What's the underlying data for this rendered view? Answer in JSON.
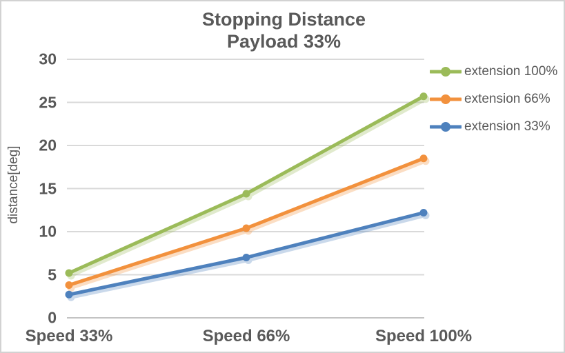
{
  "chart_data": {
    "type": "line",
    "title": "Stopping Distance",
    "subtitle": "Payload 33%",
    "categories": [
      "Speed 33%",
      "Speed 66%",
      "Speed 100%"
    ],
    "series": [
      {
        "name": "extension 100%",
        "color": "#9BBB59",
        "values": [
          5.2,
          14.4,
          25.7
        ]
      },
      {
        "name": "extension 66%",
        "color": "#F2913D",
        "values": [
          3.8,
          10.4,
          18.5
        ]
      },
      {
        "name": "extension 33%",
        "color": "#4E81BD",
        "values": [
          2.7,
          7.0,
          12.2
        ]
      }
    ],
    "xlabel": "",
    "ylabel": "distance[deg]",
    "ylim": [
      0,
      30
    ],
    "ytick_step": 5,
    "yticks": [
      "0",
      "5",
      "10",
      "15",
      "20",
      "25",
      "30"
    ],
    "grid": true,
    "legend_position": "right",
    "text_color": "#595959",
    "gridline_color": "#D9D9D9",
    "axisline_color": "#C3C3C3",
    "background_color": "#FFFFFF"
  }
}
